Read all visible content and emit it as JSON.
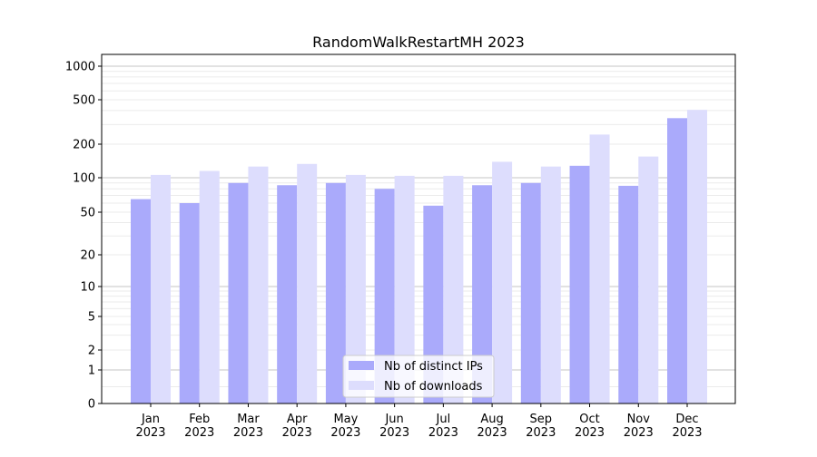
{
  "chart_data": {
    "type": "bar",
    "title": "RandomWalkRestartMH 2023",
    "xlabel": "",
    "ylabel": "",
    "yscale": "symlog",
    "ylim": [
      0,
      1300
    ],
    "grid": true,
    "legend_position": "bottom-center",
    "categories": [
      "Jan\n2023",
      "Feb\n2023",
      "Mar\n2023",
      "Apr\n2023",
      "May\n2023",
      "Jun\n2023",
      "Jul\n2023",
      "Aug\n2023",
      "Sep\n2023",
      "Oct\n2023",
      "Nov\n2023",
      "Dec\n2023"
    ],
    "yticks": [
      0,
      1,
      2,
      5,
      10,
      20,
      50,
      100,
      200,
      500,
      1000
    ],
    "series": [
      {
        "name": "Nb of distinct IPs",
        "color": "#aaaafb",
        "values": [
          65,
          60,
          90,
          86,
          90,
          80,
          57,
          86,
          90,
          128,
          85,
          342
        ]
      },
      {
        "name": "Nb of downloads",
        "color": "#ddddfd",
        "values": [
          106,
          115,
          126,
          133,
          106,
          104,
          104,
          139,
          126,
          244,
          155,
          406
        ]
      }
    ]
  }
}
